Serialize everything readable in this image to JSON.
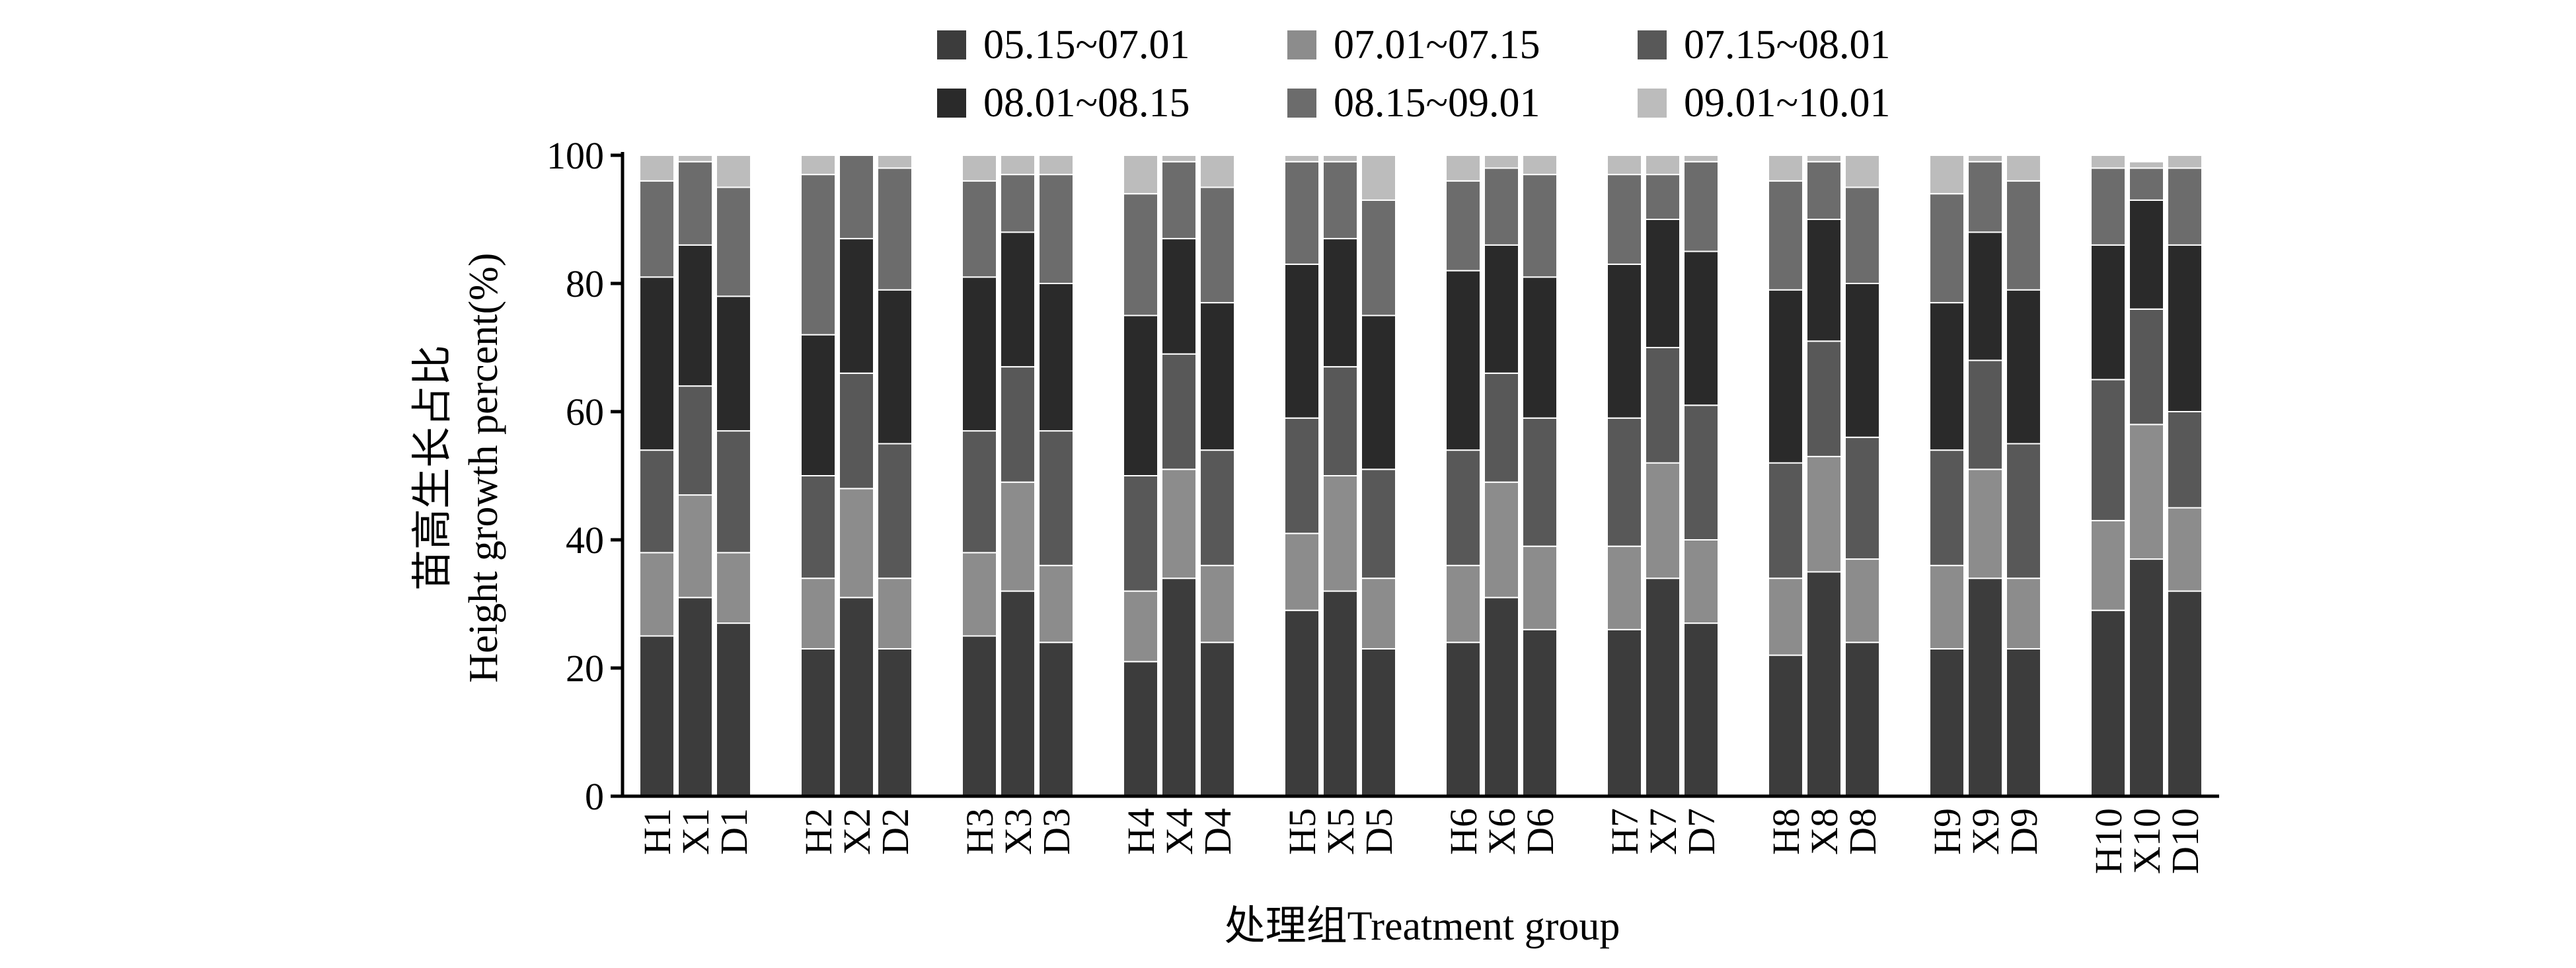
{
  "chart_data": {
    "type": "bar",
    "stacked": true,
    "ylabel_cn": "苗高生长占比",
    "ylabel": "Height growth percent(%)",
    "xlabel": "处理组Treatment group",
    "ylim": [
      0,
      100
    ],
    "yticks": [
      "0",
      "20",
      "40",
      "60",
      "80",
      "100"
    ],
    "legend_position": "top",
    "groups": [
      [
        "H1",
        "X1",
        "D1"
      ],
      [
        "H2",
        "X2",
        "D2"
      ],
      [
        "H3",
        "X3",
        "D3"
      ],
      [
        "H4",
        "X4",
        "D4"
      ],
      [
        "H5",
        "X5",
        "D5"
      ],
      [
        "H6",
        "X6",
        "D6"
      ],
      [
        "H7",
        "X7",
        "D7"
      ],
      [
        "H8",
        "X8",
        "D8"
      ],
      [
        "H9",
        "X9",
        "D9"
      ],
      [
        "H10",
        "X10",
        "D10"
      ]
    ],
    "categories": [
      "H1",
      "X1",
      "D1",
      "H2",
      "X2",
      "D2",
      "H3",
      "X3",
      "D3",
      "H4",
      "X4",
      "D4",
      "H5",
      "X5",
      "D5",
      "H6",
      "X6",
      "D6",
      "H7",
      "X7",
      "D7",
      "H8",
      "X8",
      "D8",
      "H9",
      "X9",
      "D9",
      "H10",
      "X10",
      "D10"
    ],
    "series": [
      {
        "name": "05.15~07.01",
        "color": "#3c3c3c",
        "values": [
          25,
          31,
          27,
          23,
          31,
          23,
          25,
          32,
          24,
          21,
          34,
          24,
          29,
          32,
          23,
          24,
          31,
          26,
          26,
          34,
          27,
          22,
          35,
          24,
          23,
          34,
          23,
          29,
          37,
          32
        ]
      },
      {
        "name": "07.01~07.15",
        "color": "#8c8c8c",
        "values": [
          13,
          16,
          11,
          11,
          17,
          11,
          13,
          17,
          12,
          11,
          17,
          12,
          12,
          18,
          11,
          12,
          18,
          13,
          13,
          18,
          13,
          12,
          18,
          13,
          13,
          17,
          11,
          14,
          21,
          13
        ]
      },
      {
        "name": "07.15~08.01",
        "color": "#585858",
        "values": [
          16,
          17,
          19,
          16,
          18,
          21,
          19,
          18,
          21,
          18,
          18,
          18,
          18,
          17,
          17,
          18,
          17,
          20,
          20,
          18,
          21,
          18,
          18,
          19,
          18,
          17,
          21,
          22,
          18,
          15
        ]
      },
      {
        "name": "08.01~08.15",
        "color": "#2a2a2a",
        "values": [
          27,
          22,
          21,
          22,
          21,
          24,
          24,
          21,
          23,
          25,
          18,
          23,
          24,
          20,
          24,
          28,
          20,
          22,
          24,
          20,
          24,
          27,
          19,
          24,
          23,
          20,
          24,
          21,
          17,
          26
        ]
      },
      {
        "name": "08.15~09.01",
        "color": "#6c6c6c",
        "values": [
          15,
          13,
          17,
          25,
          13,
          19,
          15,
          9,
          17,
          19,
          12,
          18,
          16,
          12,
          18,
          14,
          12,
          16,
          14,
          7,
          14,
          17,
          9,
          15,
          17,
          11,
          17,
          12,
          5,
          12
        ]
      },
      {
        "name": "09.01~10.01",
        "color": "#bcbcbc",
        "values": [
          4,
          1,
          5,
          3,
          0,
          2,
          4,
          3,
          3,
          6,
          1,
          5,
          1,
          1,
          7,
          4,
          2,
          3,
          3,
          3,
          1,
          4,
          1,
          5,
          6,
          1,
          4,
          2,
          1,
          2
        ]
      }
    ]
  }
}
